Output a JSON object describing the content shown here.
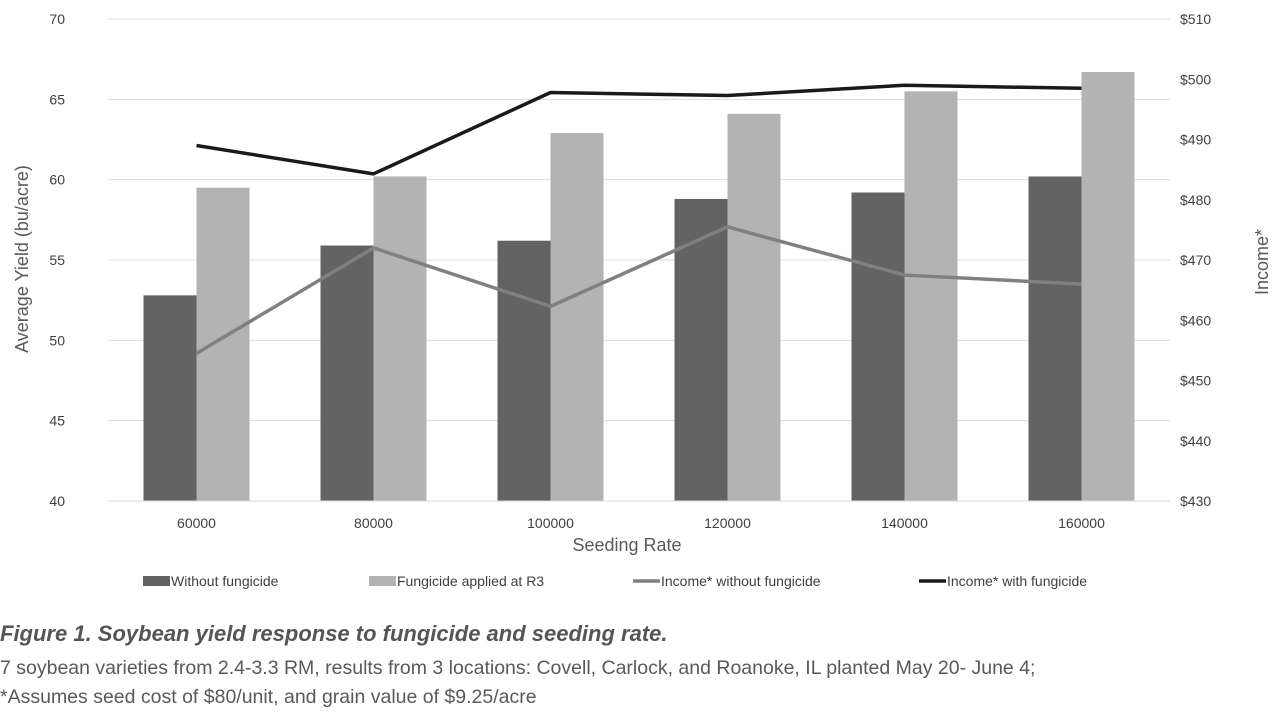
{
  "chart_data": {
    "type": "bar",
    "xlabel": "Seeding Rate",
    "ylabel": "Average Yield (bu/acre)",
    "y2label": "Income*",
    "categories": [
      "60000",
      "80000",
      "100000",
      "120000",
      "140000",
      "160000"
    ],
    "ylim": [
      40,
      70
    ],
    "yticks": [
      "40",
      "45",
      "50",
      "55",
      "60",
      "65",
      "70"
    ],
    "y2lim": [
      430,
      510
    ],
    "y2ticks": [
      "$430",
      "$440",
      "$450",
      "$460",
      "$470",
      "$480",
      "$490",
      "$500",
      "$510"
    ],
    "grid": true,
    "legend_position": "bottom",
    "series": [
      {
        "name": "Without fungicide",
        "kind": "bar",
        "axis": "left",
        "color": "#636363",
        "values": [
          52.8,
          55.9,
          56.2,
          58.8,
          59.2,
          60.2
        ]
      },
      {
        "name": "Fungicide applied at R3",
        "kind": "bar",
        "axis": "left",
        "color": "#b3b3b3",
        "values": [
          59.5,
          60.2,
          62.9,
          64.1,
          65.5,
          66.7
        ]
      },
      {
        "name": "Income* without fungicide",
        "kind": "line",
        "axis": "right",
        "color": "#808080",
        "values": [
          454.5,
          472,
          462.3,
          475.5,
          467.5,
          466
        ]
      },
      {
        "name": "Income* with fungicide",
        "kind": "line",
        "axis": "right",
        "color": "#1a1a1a",
        "values": [
          489,
          484.3,
          497.8,
          497.3,
          499,
          498.5
        ]
      }
    ]
  },
  "caption": {
    "title": "Figure 1. Soybean yield response to fungicide and seeding rate.",
    "line1": "7 soybean varieties from 2.4-3.3 RM, results from 3 locations: Covell, Carlock, and Roanoke, IL planted May 20- June 4;",
    "line2": "*Assumes seed cost of $80/unit, and grain value of $9.25/acre"
  }
}
